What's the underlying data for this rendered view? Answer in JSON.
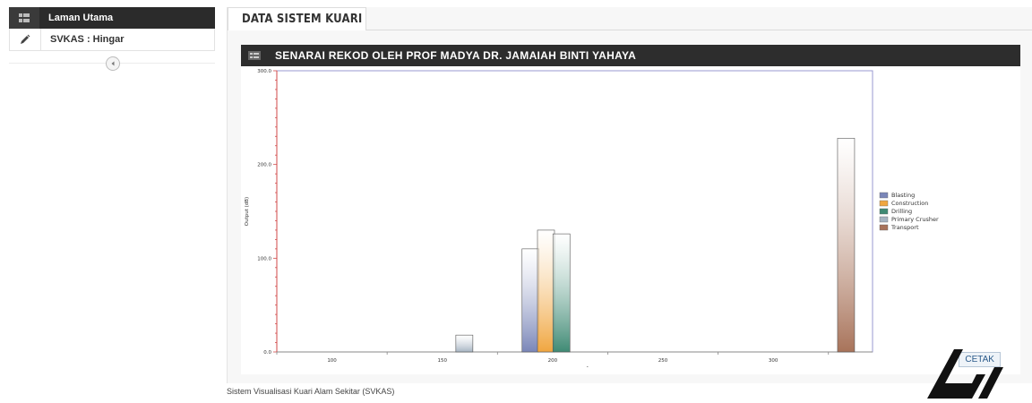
{
  "sidebar": {
    "items": [
      {
        "label": "Laman Utama",
        "icon": "dashboard-icon"
      },
      {
        "label": "SVKAS : Hingar",
        "icon": "pencil-icon"
      }
    ]
  },
  "tabs": [
    {
      "label": "DATA SISTEM KUARI"
    }
  ],
  "panel": {
    "title": "SENARAI REKOD OLEH PROF MADYA DR. JAMAIAH BINTI YAHAYA"
  },
  "chart_data": {
    "type": "bar",
    "title": "",
    "xlabel": "-",
    "ylabel": "Output (dB)",
    "ylim": [
      0,
      300
    ],
    "y_ticks": [
      "0.0",
      "100.0",
      "200.0",
      "300.0"
    ],
    "x_ticks": [
      "100",
      "150",
      "200",
      "250",
      "300"
    ],
    "legend_position": "right",
    "series": [
      {
        "name": "Blasting",
        "color": "#7a86b8"
      },
      {
        "name": "Construction",
        "color": "#f0a640"
      },
      {
        "name": "Drilling",
        "color": "#3f8a74"
      },
      {
        "name": "Primary Crusher",
        "color": "#a6b4c2"
      },
      {
        "name": "Transport",
        "color": "#a8735a"
      }
    ],
    "bars": [
      {
        "series": "Primary Crusher",
        "x": 160,
        "value": 18
      },
      {
        "series": "Blasting",
        "x": 190,
        "value": 110
      },
      {
        "series": "Construction",
        "x": 197,
        "value": 130
      },
      {
        "series": "Drilling",
        "x": 204,
        "value": 126
      },
      {
        "series": "Transport",
        "x": 333,
        "value": 228
      }
    ]
  },
  "actions": {
    "print_label": "CETAK"
  },
  "footer": {
    "text": "Sistem Visualisasi Kuari Alam Sekitar (SVKAS)"
  }
}
